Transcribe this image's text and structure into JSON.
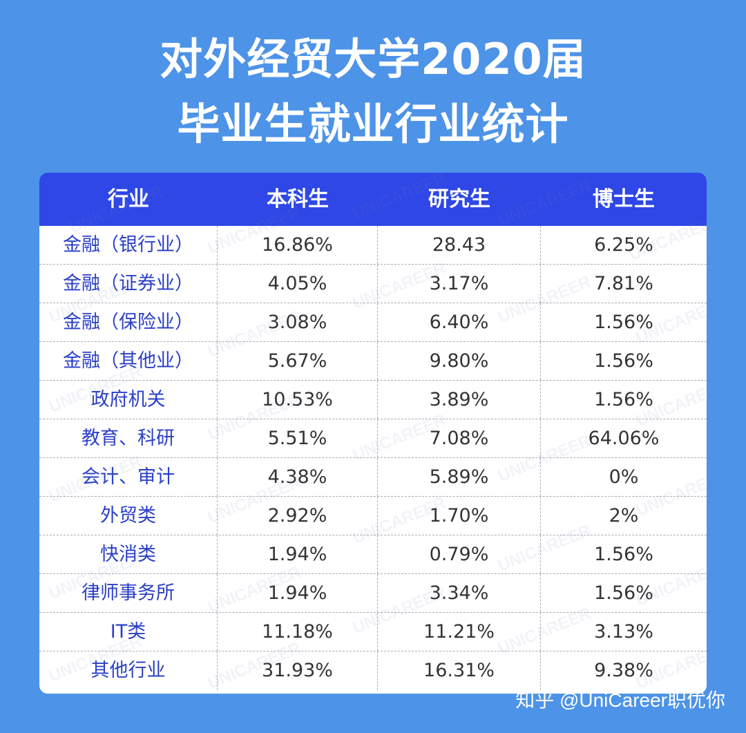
{
  "title": {
    "line1": "对外经贸大学2020届",
    "line2": "毕业生就业行业统计"
  },
  "table": {
    "headers": [
      "行业",
      "本科生",
      "研究生",
      "博士生"
    ],
    "rows": [
      [
        "金融（银行业）",
        "16.86%",
        "28.43",
        "6.25%"
      ],
      [
        "金融（证券业）",
        "4.05%",
        "3.17%",
        "7.81%"
      ],
      [
        "金融（保险业）",
        "3.08%",
        "6.40%",
        "1.56%"
      ],
      [
        "金融（其他业）",
        "5.67%",
        "9.80%",
        "1.56%"
      ],
      [
        "政府机关",
        "10.53%",
        "3.89%",
        "1.56%"
      ],
      [
        "教育、科研",
        "5.51%",
        "7.08%",
        "64.06%"
      ],
      [
        "会计、审计",
        "4.38%",
        "5.89%",
        "0%"
      ],
      [
        "外贸类",
        "2.92%",
        "1.70%",
        "2%"
      ],
      [
        "快消类",
        "1.94%",
        "0.79%",
        "1.56%"
      ],
      [
        "律师事务所",
        "1.94%",
        "3.34%",
        "1.56%"
      ],
      [
        "IT类",
        "11.18%",
        "11.21%",
        "3.13%"
      ],
      [
        "其他行业",
        "31.93%",
        "16.31%",
        "9.38%"
      ]
    ]
  },
  "watermark_text": "UNICAREER",
  "credit": "知乎 @UniCareer职优你",
  "colors": {
    "background": "#4d93e8",
    "header": "#2e47e6",
    "industry_text": "#2a3fc7"
  }
}
